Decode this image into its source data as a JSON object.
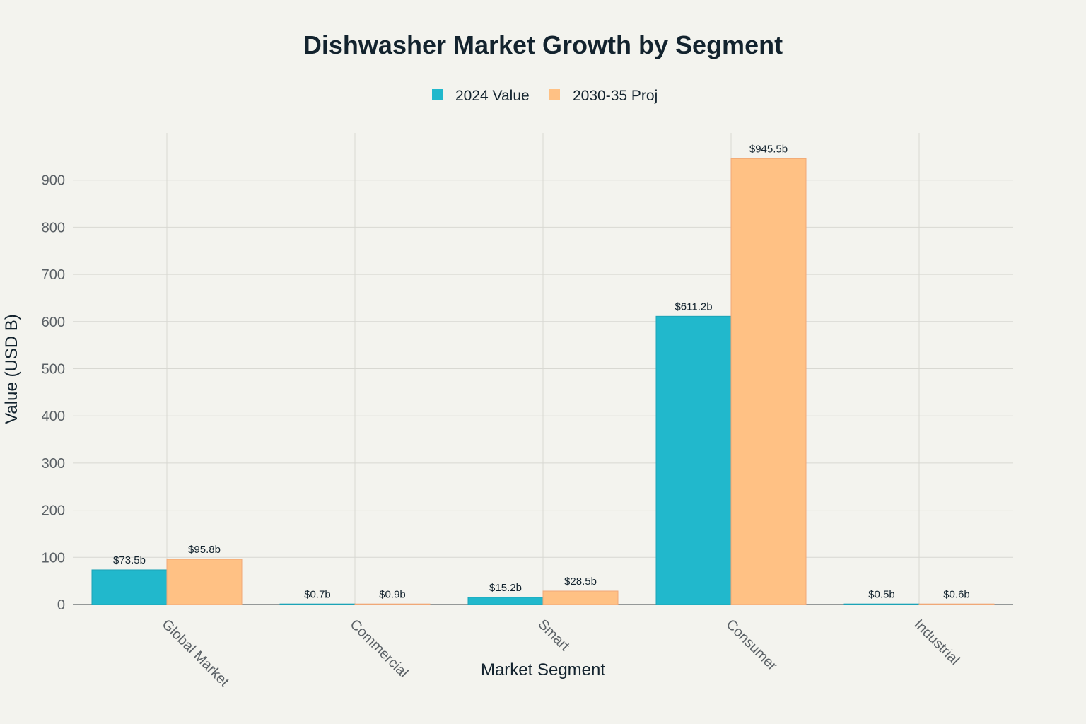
{
  "chart_data": {
    "type": "bar",
    "title": "Dishwasher Market Growth by Segment",
    "xlabel": "Market Segment",
    "ylabel": "Value (USD B)",
    "categories": [
      "Global Market",
      "Commercial",
      "Smart",
      "Consumer",
      "Industrial"
    ],
    "series": [
      {
        "name": "2024 Value",
        "color": "#21b8cc",
        "values": [
          73.5,
          0.7,
          15.2,
          611.2,
          0.5
        ],
        "labels": [
          "$73.5b",
          "$0.7b",
          "$15.2b",
          "$611.2b",
          "$0.5b"
        ]
      },
      {
        "name": "2030-35 Proj",
        "color": "#ffc184",
        "values": [
          95.8,
          0.9,
          28.5,
          945.5,
          0.6
        ],
        "labels": [
          "$95.8b",
          "$0.9b",
          "$28.5b",
          "$945.5b",
          "$0.6b"
        ]
      }
    ],
    "ylim": [
      0,
      1000
    ],
    "yticks": [
      0,
      100,
      200,
      300,
      400,
      500,
      600,
      700,
      800,
      900
    ],
    "grid": true,
    "legend_position": "top-center"
  }
}
